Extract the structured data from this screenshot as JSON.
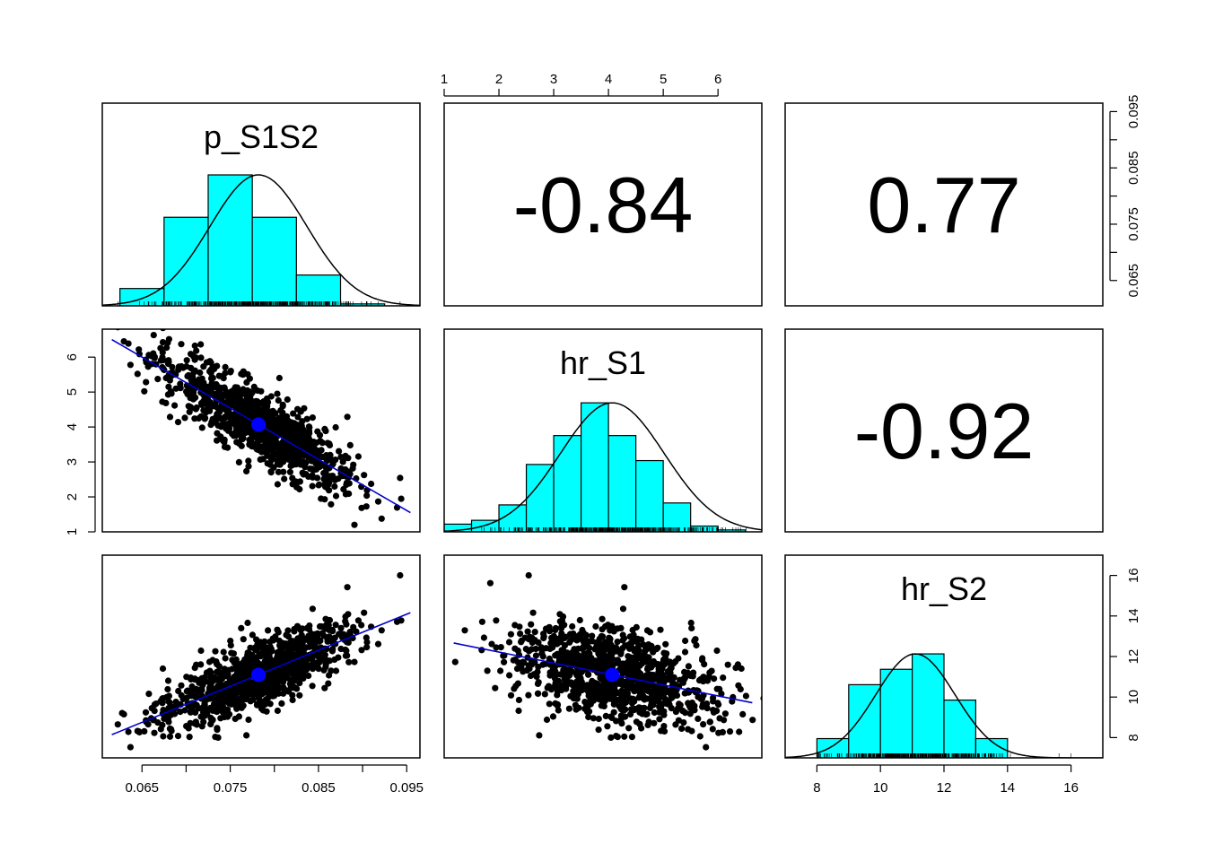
{
  "chart_data": {
    "type": "scatter",
    "title": "",
    "variables": [
      {
        "name": "p_S1S2",
        "range": [
          0.0605,
          0.0965
        ],
        "ticks": [
          0.065,
          0.075,
          0.085,
          0.095
        ],
        "tick_labels": [
          "0.065",
          "0.075",
          "0.085",
          "0.095"
        ],
        "minor_ticks": [
          0.065,
          0.07,
          0.075,
          0.08,
          0.085,
          0.09,
          0.095
        ],
        "mean": 0.0782
      },
      {
        "name": "hr_S1",
        "range": [
          1.0,
          6.8
        ],
        "ticks": [
          1,
          2,
          3,
          4,
          5,
          6
        ],
        "tick_labels": [
          "1",
          "2",
          "3",
          "4",
          "5",
          "6"
        ],
        "minor_ticks": [
          1,
          2,
          3,
          4,
          5,
          6
        ],
        "mean": 4.07
      },
      {
        "name": "hr_S2",
        "range": [
          7.0,
          17.0
        ],
        "ticks": [
          8,
          10,
          12,
          14,
          16
        ],
        "tick_labels": [
          "8",
          "10",
          "12",
          "14",
          "16"
        ],
        "minor_ticks": [
          8,
          10,
          12,
          14,
          16
        ],
        "mean": 11.1
      }
    ],
    "correlations": [
      {
        "row": 0,
        "col": 1,
        "label": "-0.84",
        "value": -0.84
      },
      {
        "row": 0,
        "col": 2,
        "label": "0.77",
        "value": 0.77
      },
      {
        "row": 1,
        "col": 2,
        "label": "-0.92",
        "value": -0.92
      }
    ],
    "histograms": [
      {
        "variable": "p_S1S2",
        "bin_edges": [
          0.0625,
          0.0675,
          0.0725,
          0.0775,
          0.0825,
          0.0875,
          0.0925,
          0.0975
        ],
        "relative_heights": [
          0.09,
          0.46,
          0.68,
          0.46,
          0.16,
          0.01,
          0.0
        ]
      },
      {
        "variable": "hr_S1",
        "bin_edges": [
          1.0,
          1.5,
          2.0,
          2.5,
          3.0,
          3.5,
          4.0,
          4.5,
          5.0,
          5.5,
          6.0,
          6.5
        ],
        "relative_heights": [
          0.04,
          0.06,
          0.14,
          0.35,
          0.5,
          0.67,
          0.5,
          0.37,
          0.15,
          0.03,
          0.01
        ]
      },
      {
        "variable": "hr_S2",
        "bin_edges": [
          8,
          9,
          10,
          11,
          12,
          13,
          14
        ],
        "relative_heights": [
          0.1,
          0.38,
          0.46,
          0.54,
          0.3,
          0.1
        ]
      }
    ],
    "scatter_points_per_panel": 1000,
    "line_color": "#0000cc",
    "hist_color": "#00ffff",
    "point_color": "#000000",
    "mean_marker_color": "#0000ff"
  }
}
